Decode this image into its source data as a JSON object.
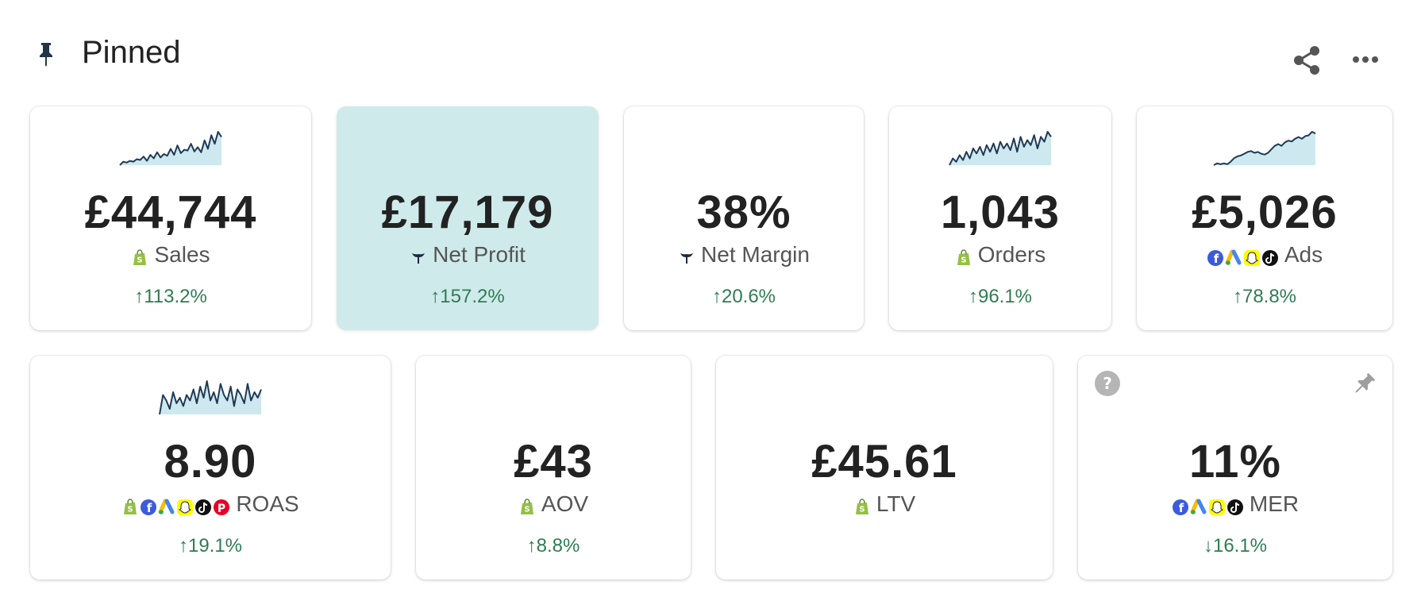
{
  "header": {
    "title": "Pinned",
    "pin_icon": "pin-icon",
    "share_icon": "share-icon",
    "more_icon": "more-horizontal-icon"
  },
  "colors": {
    "highlight_bg": "#cfeaea",
    "positive": "#2e7d52",
    "sparkline": "#1f3a55",
    "sparkline_fill": "#cde8ef"
  },
  "cards": [
    {
      "value": "£44,744",
      "label": "Sales",
      "change": "↑113.2%",
      "sources": [
        "shopify"
      ],
      "sparkline": [
        5,
        9,
        8,
        10,
        9,
        12,
        11,
        15,
        10,
        17,
        13,
        20,
        14,
        18,
        16,
        24,
        17,
        28,
        19,
        23,
        22,
        30,
        21,
        26,
        20,
        34,
        24,
        40,
        30,
        44,
        38
      ]
    },
    {
      "value": "£17,179",
      "label": "Net Profit",
      "change": "↑157.2%",
      "sources": [
        "triple-whale"
      ],
      "highlighted": true
    },
    {
      "value": "38%",
      "label": "Net Margin",
      "change": "↑20.6%",
      "sources": [
        "triple-whale"
      ]
    },
    {
      "value": "1,043",
      "label": "Orders",
      "change": "↑96.1%",
      "sources": [
        "shopify"
      ],
      "sparkline": [
        6,
        14,
        10,
        18,
        12,
        22,
        14,
        26,
        20,
        28,
        18,
        30,
        22,
        32,
        20,
        34,
        26,
        32,
        24,
        38,
        22,
        40,
        28,
        36,
        30,
        42,
        26,
        40,
        34,
        46,
        40
      ]
    },
    {
      "value": "£5,026",
      "label": "Ads",
      "change": "↑78.8%",
      "sources": [
        "facebook",
        "google-ads",
        "snapchat",
        "tiktok"
      ],
      "sparkline": [
        6,
        8,
        7,
        8,
        7,
        10,
        14,
        16,
        17,
        19,
        21,
        22,
        20,
        21,
        19,
        18,
        20,
        24,
        28,
        30,
        28,
        32,
        34,
        33,
        36,
        38,
        36,
        39,
        40,
        44,
        42
      ]
    },
    {
      "value": "8.90",
      "label": "ROAS",
      "change": "↑19.1%",
      "sources": [
        "shopify",
        "facebook",
        "google-ads",
        "snapchat",
        "tiktok",
        "pinterest"
      ],
      "sparkline": [
        20,
        34,
        30,
        24,
        36,
        28,
        32,
        26,
        34,
        30,
        38,
        28,
        40,
        32,
        44,
        30,
        36,
        28,
        42,
        34,
        30,
        40,
        26,
        38,
        34,
        28,
        42,
        30,
        36,
        32,
        38
      ]
    },
    {
      "value": "£43",
      "label": "AOV",
      "change": "↑8.8%",
      "sources": [
        "shopify"
      ]
    },
    {
      "value": "£45.61",
      "label": "LTV",
      "change": "",
      "sources": [
        "shopify"
      ]
    },
    {
      "value": "11%",
      "label": "MER",
      "change": "↓16.1%",
      "sources": [
        "facebook",
        "google-ads",
        "snapchat",
        "tiktok"
      ],
      "help_icon": "question-circle-icon",
      "pin_icon": "pin-icon"
    }
  ]
}
